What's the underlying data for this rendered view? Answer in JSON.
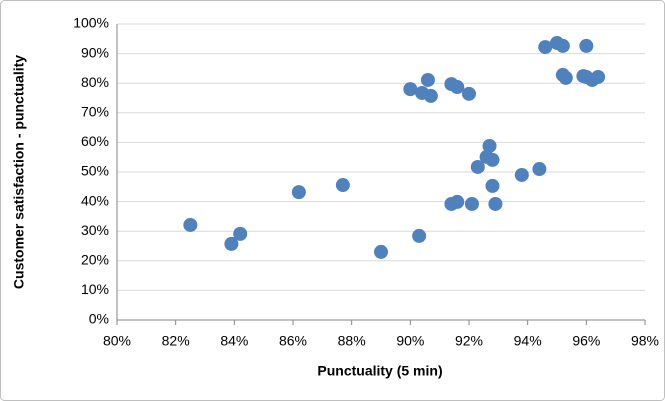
{
  "chart_data": {
    "type": "scatter",
    "x_label": "Punctuality (5 min)",
    "y_label": "Customer satisfaction - punctuality",
    "color": "#4f81bd",
    "grid": true,
    "xlim": [
      80,
      98
    ],
    "ylim": [
      0,
      100
    ],
    "xticks": [
      {
        "value": 80,
        "label": "80%"
      },
      {
        "value": 82,
        "label": "82%"
      },
      {
        "value": 84,
        "label": "84%"
      },
      {
        "value": 86,
        "label": "86%"
      },
      {
        "value": 88,
        "label": "88%"
      },
      {
        "value": 90,
        "label": "90%"
      },
      {
        "value": 92,
        "label": "92%"
      },
      {
        "value": 94,
        "label": "94%"
      },
      {
        "value": 96,
        "label": "96%"
      },
      {
        "value": 98,
        "label": "98%"
      }
    ],
    "yticks": [
      {
        "value": 0,
        "label": "0%"
      },
      {
        "value": 10,
        "label": "10%"
      },
      {
        "value": 20,
        "label": "20%"
      },
      {
        "value": 30,
        "label": "30%"
      },
      {
        "value": 40,
        "label": "40%"
      },
      {
        "value": 50,
        "label": "50%"
      },
      {
        "value": 60,
        "label": "60%"
      },
      {
        "value": 70,
        "label": "70%"
      },
      {
        "value": 80,
        "label": "80%"
      },
      {
        "value": 90,
        "label": "90%"
      },
      {
        "value": 100,
        "label": "100%"
      }
    ],
    "x": [
      82.5,
      83.9,
      84.2,
      86.2,
      87.7,
      89.0,
      90.3,
      90.0,
      90.4,
      90.6,
      90.7,
      91.4,
      91.6,
      92.0,
      91.4,
      91.6,
      92.1,
      92.9,
      92.3,
      92.6,
      92.7,
      92.8,
      92.8,
      93.8,
      94.4,
      94.6,
      95.0,
      95.2,
      95.2,
      95.3,
      95.9,
      96.0,
      96.0,
      96.2,
      96.4
    ],
    "y": [
      32.1,
      25.7,
      29.1,
      43.2,
      45.6,
      23.0,
      28.4,
      78.0,
      76.7,
      81.1,
      75.7,
      79.7,
      78.7,
      76.4,
      39.2,
      39.9,
      39.2,
      39.2,
      51.7,
      55.1,
      58.8,
      54.1,
      45.3,
      49.0,
      51.0,
      92.2,
      93.6,
      92.6,
      82.8,
      81.8,
      82.4,
      82.1,
      92.6,
      81.1,
      82.1
    ]
  }
}
